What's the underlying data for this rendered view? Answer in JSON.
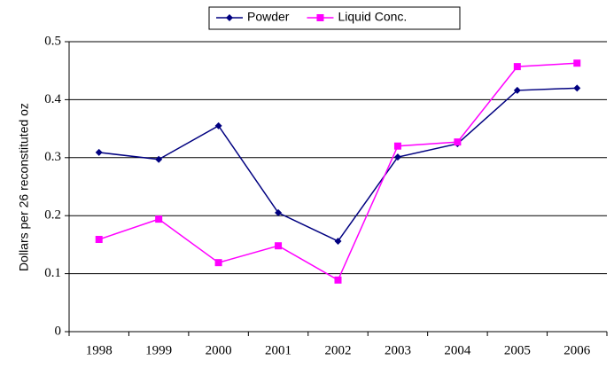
{
  "chart_data": {
    "type": "line",
    "y_label": "Dollars per 26 reconstituted oz",
    "categories": [
      "1998",
      "1999",
      "2000",
      "2001",
      "2002",
      "2003",
      "2004",
      "2005",
      "2006"
    ],
    "series": [
      {
        "name": "Powder",
        "color": "#000080",
        "marker": "diamond",
        "values": [
          0.309,
          0.297,
          0.355,
          0.205,
          0.156,
          0.301,
          0.324,
          0.416,
          0.42
        ]
      },
      {
        "name": "Liquid Conc.",
        "color": "#ff00ff",
        "marker": "square",
        "values": [
          0.159,
          0.194,
          0.119,
          0.148,
          0.089,
          0.32,
          0.327,
          0.457,
          0.463
        ]
      }
    ],
    "ylim": [
      0,
      0.5
    ],
    "yticks": [
      0,
      0.1,
      0.2,
      0.3,
      0.4,
      0.5
    ],
    "grid": true,
    "legend": "top"
  }
}
